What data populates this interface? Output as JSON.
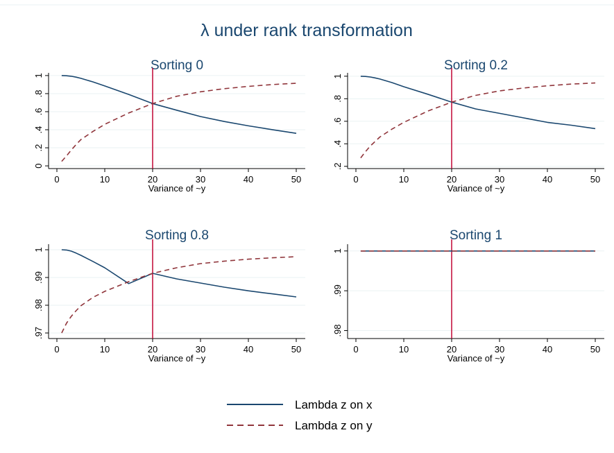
{
  "title": "λ under rank transformation",
  "colors": {
    "x_series": "#1a476f",
    "y_series": "#90353b",
    "vline": "#c10534",
    "grid": "#eaf2f3",
    "background": "#ffffff"
  },
  "legend": {
    "placement": "bottom-center",
    "items": [
      {
        "label": "Lambda z on x",
        "style": "solid"
      },
      {
        "label": "Lambda z on y",
        "style": "dashed"
      }
    ]
  },
  "chart_data": [
    {
      "type": "line",
      "title": "Sorting 0",
      "xlabel": "Variance of ~y",
      "ylabel": "",
      "xlim": [
        0,
        50
      ],
      "ylim": [
        -0.03,
        1.03
      ],
      "xticks": [
        0,
        10,
        20,
        30,
        40,
        50
      ],
      "yticks": [
        0,
        0.2,
        0.4,
        0.6,
        0.8,
        1
      ],
      "ytick_labels": [
        "0",
        ".2",
        ".4",
        ".6",
        ".8",
        "1"
      ],
      "vline_x": 20,
      "grid": true,
      "x": [
        1,
        2,
        3,
        4,
        5,
        7.5,
        10,
        15,
        20,
        25,
        30,
        35,
        40,
        45,
        50
      ],
      "series": [
        {
          "name": "Lambda z on x",
          "values": [
            1.0,
            0.998,
            0.992,
            0.982,
            0.969,
            0.93,
            0.885,
            0.791,
            0.69,
            0.617,
            0.546,
            0.491,
            0.443,
            0.401,
            0.36
          ]
        },
        {
          "name": "Lambda z on y",
          "values": [
            0.05,
            0.11,
            0.175,
            0.235,
            0.29,
            0.38,
            0.46,
            0.585,
            0.69,
            0.77,
            0.82,
            0.855,
            0.88,
            0.9,
            0.915
          ]
        }
      ]
    },
    {
      "type": "line",
      "title": "Sorting 0.2",
      "xlabel": "Variance of ~y",
      "ylabel": "",
      "xlim": [
        0,
        50
      ],
      "ylim": [
        0.18,
        1.03
      ],
      "xticks": [
        0,
        10,
        20,
        30,
        40,
        50
      ],
      "yticks": [
        0.2,
        0.4,
        0.6,
        0.8,
        1
      ],
      "ytick_labels": [
        ".2",
        ".4",
        ".6",
        ".8",
        "1"
      ],
      "vline_x": 20,
      "grid": true,
      "x": [
        1,
        2,
        3,
        4,
        5,
        7.5,
        10,
        15,
        20,
        25,
        30,
        35,
        40,
        45,
        50
      ],
      "series": [
        {
          "name": "Lambda z on x",
          "values": [
            1.0,
            0.998,
            0.993,
            0.985,
            0.975,
            0.944,
            0.907,
            0.84,
            0.77,
            0.71,
            0.67,
            0.63,
            0.59,
            0.565,
            0.535
          ]
        },
        {
          "name": "Lambda z on y",
          "values": [
            0.275,
            0.33,
            0.38,
            0.42,
            0.46,
            0.53,
            0.59,
            0.69,
            0.77,
            0.83,
            0.87,
            0.895,
            0.915,
            0.93,
            0.94
          ]
        }
      ]
    },
    {
      "type": "line",
      "title": "Sorting 0.8",
      "xlabel": "Variance of ~y",
      "ylabel": "",
      "xlim": [
        0,
        50
      ],
      "ylim": [
        0.968,
        1.002
      ],
      "xticks": [
        0,
        10,
        20,
        30,
        40,
        50
      ],
      "yticks": [
        0.97,
        0.98,
        0.99,
        1
      ],
      "ytick_labels": [
        ".97",
        ".98",
        ".99",
        "1"
      ],
      "vline_x": 20,
      "grid": true,
      "x": [
        1,
        2,
        3,
        4,
        5,
        7.5,
        10,
        15,
        20,
        25,
        30,
        35,
        40,
        45,
        50
      ],
      "series": [
        {
          "name": "Lambda z on x",
          "values": [
            1.0,
            0.9999,
            0.9995,
            0.9988,
            0.998,
            0.9958,
            0.9935,
            0.9878,
            0.9915,
            0.9895,
            0.988,
            0.9865,
            0.9852,
            0.9841,
            0.983
          ]
        },
        {
          "name": "Lambda z on y",
          "values": [
            0.97,
            0.9735,
            0.976,
            0.978,
            0.9798,
            0.9828,
            0.985,
            0.9885,
            0.9915,
            0.9935,
            0.995,
            0.9959,
            0.9966,
            0.9971,
            0.9975
          ]
        }
      ]
    },
    {
      "type": "line",
      "title": "Sorting 1",
      "xlabel": "Variance of ~y",
      "ylabel": "",
      "xlim": [
        0,
        50
      ],
      "ylim": [
        0.978,
        1.0017
      ],
      "xticks": [
        0,
        10,
        20,
        30,
        40,
        50
      ],
      "yticks": [
        0.98,
        0.99,
        1
      ],
      "ytick_labels": [
        ".98",
        ".99",
        "1"
      ],
      "vline_x": 20,
      "grid": true,
      "x": [
        1,
        10,
        20,
        30,
        40,
        50
      ],
      "series": [
        {
          "name": "Lambda z on x",
          "values": [
            1,
            1,
            1,
            1,
            1,
            1
          ]
        },
        {
          "name": "Lambda z on y",
          "values": [
            1,
            1,
            1,
            1,
            1,
            1
          ]
        }
      ]
    }
  ]
}
